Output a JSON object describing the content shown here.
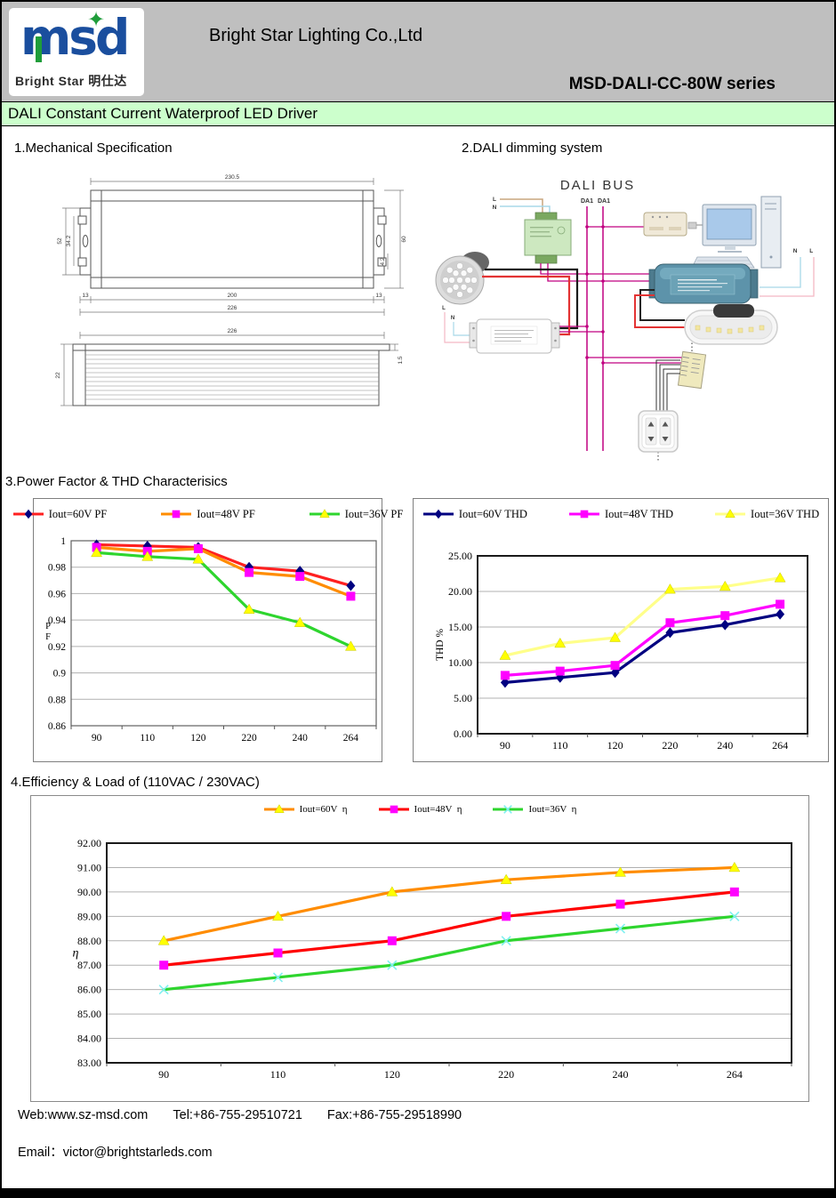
{
  "header": {
    "company": "Bright Star Lighting Co.,Ltd",
    "series": "MSD-DALI-CC-80W series",
    "logo": {
      "wordmark": "msd",
      "star": "✦",
      "tagline": "Bright Star 明仕达"
    }
  },
  "title_bar": {
    "label": "DALI Constant Current Waterproof LED Driver"
  },
  "sections": {
    "mechanical": "1.Mechanical Specification",
    "dali": "2.DALI dimming system",
    "pf_thd": "3.Power Factor & THD Characterisics",
    "efficiency": "4.Efficiency & Load of (110VAC / 230VAC)"
  },
  "mechanical": {
    "dims": {
      "top_width": "230.5",
      "mount_height": "52",
      "slot_span": "34.2",
      "body_height": "60",
      "hole_width": "4.2",
      "ear_left": "13",
      "body_length": "200",
      "ear_right": "13",
      "total_length": "226",
      "side_length": "226",
      "side_height": "22",
      "flange_thickness": "1.5"
    }
  },
  "dali_diagram": {
    "bus_label": "DALI BUS",
    "da1_left": "DA1",
    "da1_right": "DA1",
    "line_label": "L",
    "neutral_label": "N",
    "nl_right_label": "N L",
    "line_label_2": "L",
    "neutral_label_2": "N"
  },
  "chart_data": [
    {
      "id": "pf",
      "type": "line",
      "title": "",
      "categories": [
        "90",
        "110",
        "120",
        "220",
        "240",
        "264"
      ],
      "xlabel": "",
      "ylabel": "PF",
      "ylim": [
        0.86,
        1.0
      ],
      "ytick_labels": [
        "0.86",
        "0.88",
        "0.9",
        "0.92",
        "0.94",
        "0.96",
        "0.98",
        "1"
      ],
      "grid": true,
      "legend_position": "top",
      "series": [
        {
          "name": "Iout=60V PF",
          "line_color": "#ff2020",
          "marker": "diamond",
          "marker_color": "#000080",
          "values": [
            0.997,
            0.996,
            0.995,
            0.98,
            0.977,
            0.966
          ]
        },
        {
          "name": "Iout=48V PF",
          "line_color": "#ff8c00",
          "marker": "square",
          "marker_color": "#ff00ff",
          "values": [
            0.995,
            0.992,
            0.994,
            0.976,
            0.973,
            0.958
          ]
        },
        {
          "name": "Iout=36V PF",
          "line_color": "#2ed52e",
          "marker": "triangle",
          "marker_color": "#ffff00",
          "values": [
            0.991,
            0.988,
            0.986,
            0.948,
            0.938,
            0.92
          ]
        }
      ]
    },
    {
      "id": "thd",
      "type": "line",
      "title": "",
      "categories": [
        "90",
        "110",
        "120",
        "220",
        "240",
        "264"
      ],
      "xlabel": "",
      "ylabel": "THD %",
      "ylim": [
        0,
        25
      ],
      "ytick_labels": [
        "0.00",
        "5.00",
        "10.00",
        "15.00",
        "20.00",
        "25.00"
      ],
      "grid": true,
      "legend_position": "top",
      "series": [
        {
          "name": "Iout=60V THD",
          "line_color": "#000080",
          "marker": "diamond",
          "marker_color": "#000080",
          "values": [
            7.2,
            7.9,
            8.6,
            14.2,
            15.3,
            16.8
          ]
        },
        {
          "name": "Iout=48V THD",
          "line_color": "#ff00ff",
          "marker": "square",
          "marker_color": "#ff00ff",
          "values": [
            8.2,
            8.8,
            9.6,
            15.6,
            16.6,
            18.2
          ]
        },
        {
          "name": "Iout=36V THD",
          "line_color": "#ffff8a",
          "marker": "triangle",
          "marker_color": "#ffff00",
          "values": [
            11.0,
            12.7,
            13.5,
            20.3,
            20.7,
            21.9
          ]
        }
      ]
    },
    {
      "id": "eff",
      "type": "line",
      "title": "",
      "categories": [
        "90",
        "110",
        "120",
        "220",
        "240",
        "264"
      ],
      "xlabel": "",
      "ylabel": "η",
      "ylim": [
        83,
        92
      ],
      "ytick_labels": [
        "83.00",
        "84.00",
        "85.00",
        "86.00",
        "87.00",
        "88.00",
        "89.00",
        "90.00",
        "91.00",
        "92.00"
      ],
      "grid": true,
      "legend_position": "top",
      "series": [
        {
          "name": "Iout=60V  η",
          "line_color": "#ff8c00",
          "marker": "triangle",
          "marker_color": "#ffff00",
          "values": [
            88.0,
            89.0,
            90.0,
            90.5,
            90.8,
            91.0
          ]
        },
        {
          "name": "Iout=48V  η",
          "line_color": "#ff0000",
          "marker": "square",
          "marker_color": "#ff00ff",
          "values": [
            87.0,
            87.5,
            88.0,
            89.0,
            89.5,
            90.0
          ]
        },
        {
          "name": "Iout=36V  η",
          "line_color": "#2ed52e",
          "marker": "x",
          "marker_color": "#7ff0f0",
          "values": [
            86.0,
            86.5,
            87.0,
            88.0,
            88.5,
            89.0
          ]
        }
      ]
    }
  ],
  "footer": {
    "web": "Web:www.sz-msd.com",
    "tel": "Tel:+86-755-29510721",
    "fax": "Fax:+86-755-29518990",
    "email": "Email：victor@brightstarleds.com"
  }
}
